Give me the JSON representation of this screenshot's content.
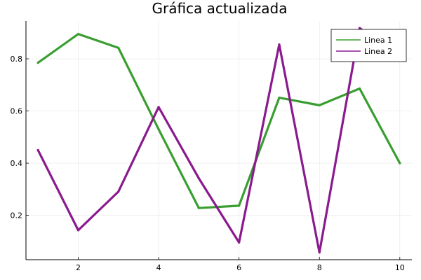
{
  "chart_data": {
    "type": "line",
    "title": "Gráfica actualizada",
    "xlabel": "",
    "ylabel": "",
    "x": [
      1,
      2,
      3,
      4,
      5,
      6,
      7,
      8,
      9,
      10
    ],
    "xlim": [
      0.7,
      10.3
    ],
    "ylim": [
      0.03,
      0.945
    ],
    "xticks": [
      2,
      4,
      6,
      8,
      10
    ],
    "xtick_labels": [
      "2",
      "4",
      "6",
      "8",
      "10"
    ],
    "yticks": [
      0.2,
      0.4,
      0.6,
      0.8
    ],
    "ytick_labels": [
      "0.2",
      "0.4",
      "0.6",
      "0.8"
    ],
    "grid": true,
    "legend_position": "top-right",
    "series": [
      {
        "name": "Linea 1",
        "color": "#389e2f",
        "values": [
          0.785,
          0.895,
          0.842,
          0.53,
          0.228,
          0.237,
          0.651,
          0.622,
          0.686,
          0.4
        ]
      },
      {
        "name": "Linea 2",
        "color": "#8a1a8e",
        "values": [
          0.45,
          0.143,
          0.291,
          0.615,
          0.342,
          0.096,
          0.855,
          0.058,
          0.918,
          0.8
        ]
      }
    ]
  }
}
